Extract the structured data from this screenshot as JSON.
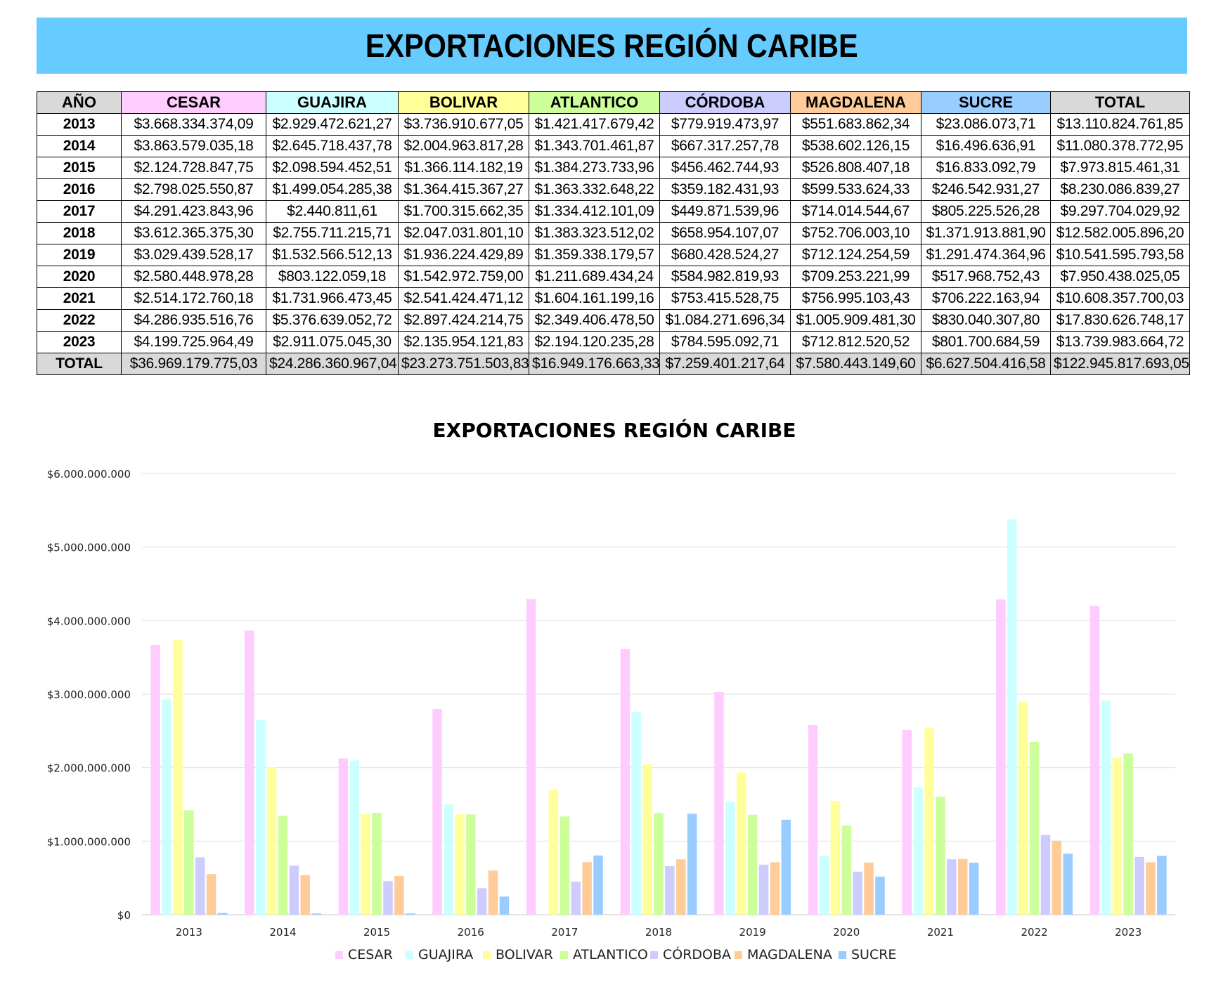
{
  "banner": {
    "title": "EXPORTACIONES REGIÓN CARIBE"
  },
  "table": {
    "headers": [
      "AÑO",
      "CESAR",
      "GUAJIRA",
      "BOLIVAR",
      "ATLANTICO",
      "CÓRDOBA",
      "MAGDALENA",
      "SUCRE",
      "TOTAL"
    ],
    "header_colors": [
      "#d9d9d9",
      "#ffccff",
      "#ccffff",
      "#ffff99",
      "#ccff99",
      "#ccccff",
      "#ffcc99",
      "#99ccff",
      "#d9d9d9"
    ],
    "rows": [
      [
        "2013",
        "$3.668.334.374,09",
        "$2.929.472.621,27",
        "$3.736.910.677,05",
        "$1.421.417.679,42",
        "$779.919.473,97",
        "$551.683.862,34",
        "$23.086.073,71",
        "$13.110.824.761,85"
      ],
      [
        "2014",
        "$3.863.579.035,18",
        "$2.645.718.437,78",
        "$2.004.963.817,28",
        "$1.343.701.461,87",
        "$667.317.257,78",
        "$538.602.126,15",
        "$16.496.636,91",
        "$11.080.378.772,95"
      ],
      [
        "2015",
        "$2.124.728.847,75",
        "$2.098.594.452,51",
        "$1.366.114.182,19",
        "$1.384.273.733,96",
        "$456.462.744,93",
        "$526.808.407,18",
        "$16.833.092,79",
        "$7.973.815.461,31"
      ],
      [
        "2016",
        "$2.798.025.550,87",
        "$1.499.054.285,38",
        "$1.364.415.367,27",
        "$1.363.332.648,22",
        "$359.182.431,93",
        "$599.533.624,33",
        "$246.542.931,27",
        "$8.230.086.839,27"
      ],
      [
        "2017",
        "$4.291.423.843,96",
        "$2.440.811,61",
        "$1.700.315.662,35",
        "$1.334.412.101,09",
        "$449.871.539,96",
        "$714.014.544,67",
        "$805.225.526,28",
        "$9.297.704.029,92"
      ],
      [
        "2018",
        "$3.612.365.375,30",
        "$2.755.711.215,71",
        "$2.047.031.801,10",
        "$1.383.323.512,02",
        "$658.954.107,07",
        "$752.706.003,10",
        "$1.371.913.881,90",
        "$12.582.005.896,20"
      ],
      [
        "2019",
        "$3.029.439.528,17",
        "$1.532.566.512,13",
        "$1.936.224.429,89",
        "$1.359.338.179,57",
        "$680.428.524,27",
        "$712.124.254,59",
        "$1.291.474.364,96",
        "$10.541.595.793,58"
      ],
      [
        "2020",
        "$2.580.448.978,28",
        "$803.122.059,18",
        "$1.542.972.759,00",
        "$1.211.689.434,24",
        "$584.982.819,93",
        "$709.253.221,99",
        "$517.968.752,43",
        "$7.950.438.025,05"
      ],
      [
        "2021",
        "$2.514.172.760,18",
        "$1.731.966.473,45",
        "$2.541.424.471,12",
        "$1.604.161.199,16",
        "$753.415.528,75",
        "$756.995.103,43",
        "$706.222.163,94",
        "$10.608.357.700,03"
      ],
      [
        "2022",
        "$4.286.935.516,76",
        "$5.376.639.052,72",
        "$2.897.424.214,75",
        "$2.349.406.478,50",
        "$1.084.271.696,34",
        "$1.005.909.481,30",
        "$830.040.307,80",
        "$17.830.626.748,17"
      ],
      [
        "2023",
        "$4.199.725.964,49",
        "$2.911.075.045,30",
        "$2.135.954.121,83",
        "$2.194.120.235,28",
        "$784.595.092,71",
        "$712.812.520,52",
        "$801.700.684,59",
        "$13.739.983.664,72"
      ]
    ],
    "total_row": [
      "TOTAL",
      "$36.969.179.775,03",
      "$24.286.360.967,04",
      "$23.273.751.503,83",
      "$16.949.176.663,33",
      "$7.259.401.217,64",
      "$7.580.443.149,60",
      "$6.627.504.416,58",
      "$122.945.817.693,05"
    ]
  },
  "chart_data": {
    "type": "bar",
    "title": "EXPORTACIONES REGIÓN CARIBE",
    "xlabel": "",
    "ylabel": "",
    "ylim": [
      0,
      6000000000
    ],
    "yticks": [
      0,
      1000000000,
      2000000000,
      3000000000,
      4000000000,
      5000000000,
      6000000000
    ],
    "ytick_labels": [
      "$0",
      "$1.000.000.000",
      "$2.000.000.000",
      "$3.000.000.000",
      "$4.000.000.000",
      "$5.000.000.000",
      "$6.000.000.000"
    ],
    "grid": true,
    "legend": "bottom",
    "categories": [
      "2013",
      "2014",
      "2015",
      "2016",
      "2017",
      "2018",
      "2019",
      "2020",
      "2021",
      "2022",
      "2023"
    ],
    "series": [
      {
        "name": "CESAR",
        "color": "#ffccff",
        "values": [
          3668334374.09,
          3863579035.18,
          2124728847.75,
          2798025550.87,
          4291423843.96,
          3612365375.3,
          3029439528.17,
          2580448978.28,
          2514172760.18,
          4286935516.76,
          4199725964.49
        ]
      },
      {
        "name": "GUAJIRA",
        "color": "#ccffff",
        "values": [
          2929472621.27,
          2645718437.78,
          2098594452.51,
          1499054285.38,
          2440811.61,
          2755711215.71,
          1532566512.13,
          803122059.18,
          1731966473.45,
          5376639052.72,
          2911075045.3
        ]
      },
      {
        "name": "BOLIVAR",
        "color": "#ffff99",
        "values": [
          3736910677.05,
          2004963817.28,
          1366114182.19,
          1364415367.27,
          1700315662.35,
          2047031801.1,
          1936224429.89,
          1542972759.0,
          2541424471.12,
          2897424214.75,
          2135954121.83
        ]
      },
      {
        "name": "ATLANTICO",
        "color": "#ccff99",
        "values": [
          1421417679.42,
          1343701461.87,
          1384273733.96,
          1363332648.22,
          1334412101.09,
          1383323512.02,
          1359338179.57,
          1211689434.24,
          1604161199.16,
          2349406478.5,
          2194120235.28
        ]
      },
      {
        "name": "CÓRDOBA",
        "color": "#ccccff",
        "values": [
          779919473.97,
          667317257.78,
          456462744.93,
          359182431.93,
          449871539.96,
          658954107.07,
          680428524.27,
          584982819.93,
          753415528.75,
          1084271696.34,
          784595092.71
        ]
      },
      {
        "name": "MAGDALENA",
        "color": "#ffcc99",
        "values": [
          551683862.34,
          538602126.15,
          526808407.18,
          599533624.33,
          714014544.67,
          752706003.1,
          712124254.59,
          709253221.99,
          756995103.43,
          1005909481.3,
          712812520.52
        ]
      },
      {
        "name": "SUCRE",
        "color": "#99ccff",
        "values": [
          23086073.71,
          16496636.91,
          16833092.79,
          246542931.27,
          805225526.28,
          1371913881.9,
          1291474364.96,
          517968752.43,
          706222163.94,
          830040307.8,
          801700684.59
        ]
      }
    ]
  }
}
